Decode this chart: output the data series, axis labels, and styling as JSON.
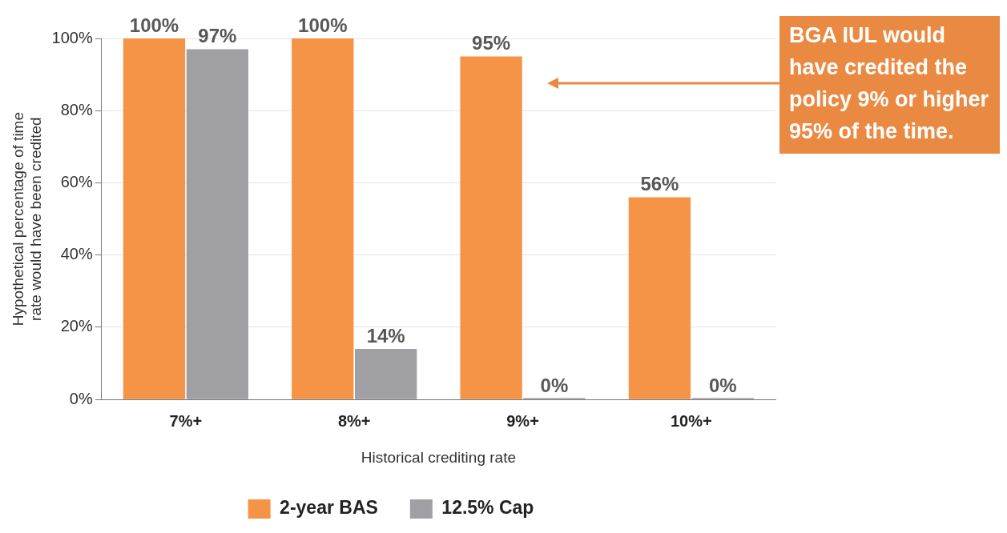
{
  "chart_data": {
    "type": "bar",
    "xlabel": "Historical crediting rate",
    "ylabel": "Hypothetical percentage of time\nrate would have been credited",
    "categories": [
      "7%+",
      "8%+",
      "9%+",
      "10%+"
    ],
    "series": [
      {
        "name": "2-year BAS",
        "color": "#f59346",
        "values": [
          100,
          100,
          95,
          56
        ],
        "value_labels": [
          "100%",
          "100%",
          "95%",
          "56%"
        ]
      },
      {
        "name": "12.5% Cap",
        "color": "#a09fa4",
        "values": [
          97,
          14,
          0,
          0
        ],
        "value_labels": [
          "97%",
          "14%",
          "0%",
          "0%"
        ]
      }
    ],
    "ylim": [
      0,
      100
    ],
    "yticks": [
      {
        "value": 0,
        "label": "0%"
      },
      {
        "value": 20,
        "label": "20%"
      },
      {
        "value": 40,
        "label": "40%"
      },
      {
        "value": 60,
        "label": "60%"
      },
      {
        "value": 80,
        "label": "80%"
      },
      {
        "value": 100,
        "label": "100%"
      }
    ],
    "grid": "y",
    "legend": "bottom",
    "annotations": [
      "BGA IUL would have credited the policy 9% or higher 95% of the time."
    ]
  }
}
